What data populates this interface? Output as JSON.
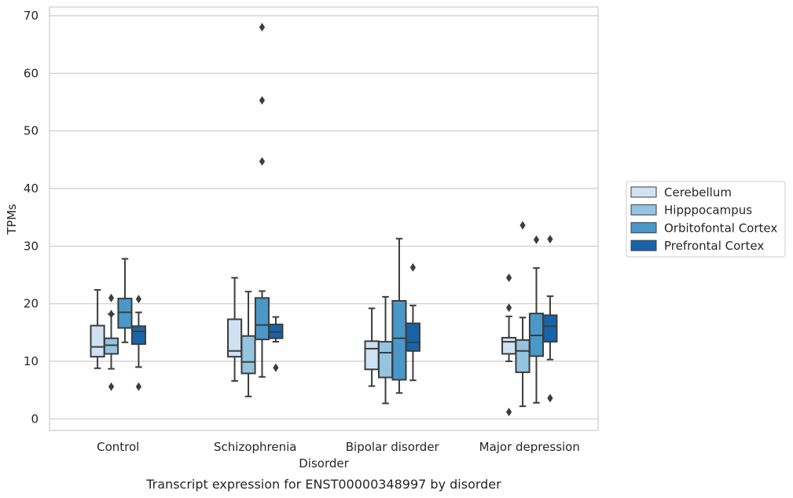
{
  "chart_data": {
    "type": "box",
    "title": "",
    "caption": "Transcript expression for ENST00000348997 by disorder",
    "xlabel": "Disorder",
    "ylabel": "TPMs",
    "ylim": [
      -2,
      71.5
    ],
    "yticks": [
      0,
      10,
      20,
      30,
      40,
      50,
      60,
      70
    ],
    "grid": "horizontal",
    "legend_position": "right",
    "categories": [
      "Control",
      "Schizophrenia",
      "Bipolar disorder",
      "Major depression"
    ],
    "series": [
      {
        "name": "Cerebellum",
        "color": "#d0e1f2",
        "boxes": [
          {
            "whislo": 8.8,
            "q1": 10.8,
            "med": 12.5,
            "q3": 16.2,
            "whishi": 22.4,
            "fliers": []
          },
          {
            "whislo": 6.6,
            "q1": 10.8,
            "med": 11.8,
            "q3": 17.3,
            "whishi": 24.5,
            "fliers": []
          },
          {
            "whislo": 5.7,
            "q1": 8.6,
            "med": 12.2,
            "q3": 13.5,
            "whishi": 19.2,
            "fliers": []
          },
          {
            "whislo": 10.0,
            "q1": 11.3,
            "med": 13.4,
            "q3": 14.1,
            "whishi": 17.8,
            "fliers": [
              1.2,
              19.3,
              24.5
            ]
          }
        ]
      },
      {
        "name": "Hipppocampus",
        "color": "#94c4df",
        "boxes": [
          {
            "whislo": 8.7,
            "q1": 11.3,
            "med": 12.8,
            "q3": 14.0,
            "whishi": 18.2,
            "fliers": [
              5.6,
              18.2,
              21.0
            ]
          },
          {
            "whislo": 3.9,
            "q1": 7.9,
            "med": 9.9,
            "q3": 14.4,
            "whishi": 22.1,
            "fliers": []
          },
          {
            "whislo": 2.7,
            "q1": 7.2,
            "med": 11.5,
            "q3": 13.4,
            "whishi": 21.2,
            "fliers": []
          },
          {
            "whislo": 2.2,
            "q1": 8.1,
            "med": 11.8,
            "q3": 13.7,
            "whishi": 17.6,
            "fliers": [
              33.6
            ]
          }
        ]
      },
      {
        "name": "Orbitofontal Cortex",
        "color": "#4a98c9",
        "boxes": [
          {
            "whislo": 13.3,
            "q1": 15.8,
            "med": 18.5,
            "q3": 20.9,
            "whishi": 27.8,
            "fliers": []
          },
          {
            "whislo": 7.3,
            "q1": 13.8,
            "med": 16.3,
            "q3": 21.0,
            "whishi": 22.2,
            "fliers": [
              44.7,
              55.3,
              68.0
            ]
          },
          {
            "whislo": 4.5,
            "q1": 6.8,
            "med": 14.0,
            "q3": 20.5,
            "whishi": 31.3,
            "fliers": []
          },
          {
            "whislo": 2.8,
            "q1": 10.9,
            "med": 14.5,
            "q3": 18.3,
            "whishi": 26.2,
            "fliers": [
              31.1
            ]
          }
        ]
      },
      {
        "name": "Prefrontal Cortex",
        "color": "#1764ab",
        "boxes": [
          {
            "whislo": 9.0,
            "q1": 13.0,
            "med": 15.2,
            "q3": 16.1,
            "whishi": 18.5,
            "fliers": [
              5.6,
              20.8
            ]
          },
          {
            "whislo": 13.4,
            "q1": 14.0,
            "med": 15.1,
            "q3": 16.4,
            "whishi": 17.7,
            "fliers": [
              8.9
            ]
          },
          {
            "whislo": 6.7,
            "q1": 11.8,
            "med": 13.3,
            "q3": 16.6,
            "whishi": 19.7,
            "fliers": [
              26.3
            ]
          },
          {
            "whislo": 10.3,
            "q1": 13.4,
            "med": 16.1,
            "q3": 18.0,
            "whishi": 21.3,
            "fliers": [
              3.6,
              31.2
            ]
          }
        ]
      }
    ]
  }
}
